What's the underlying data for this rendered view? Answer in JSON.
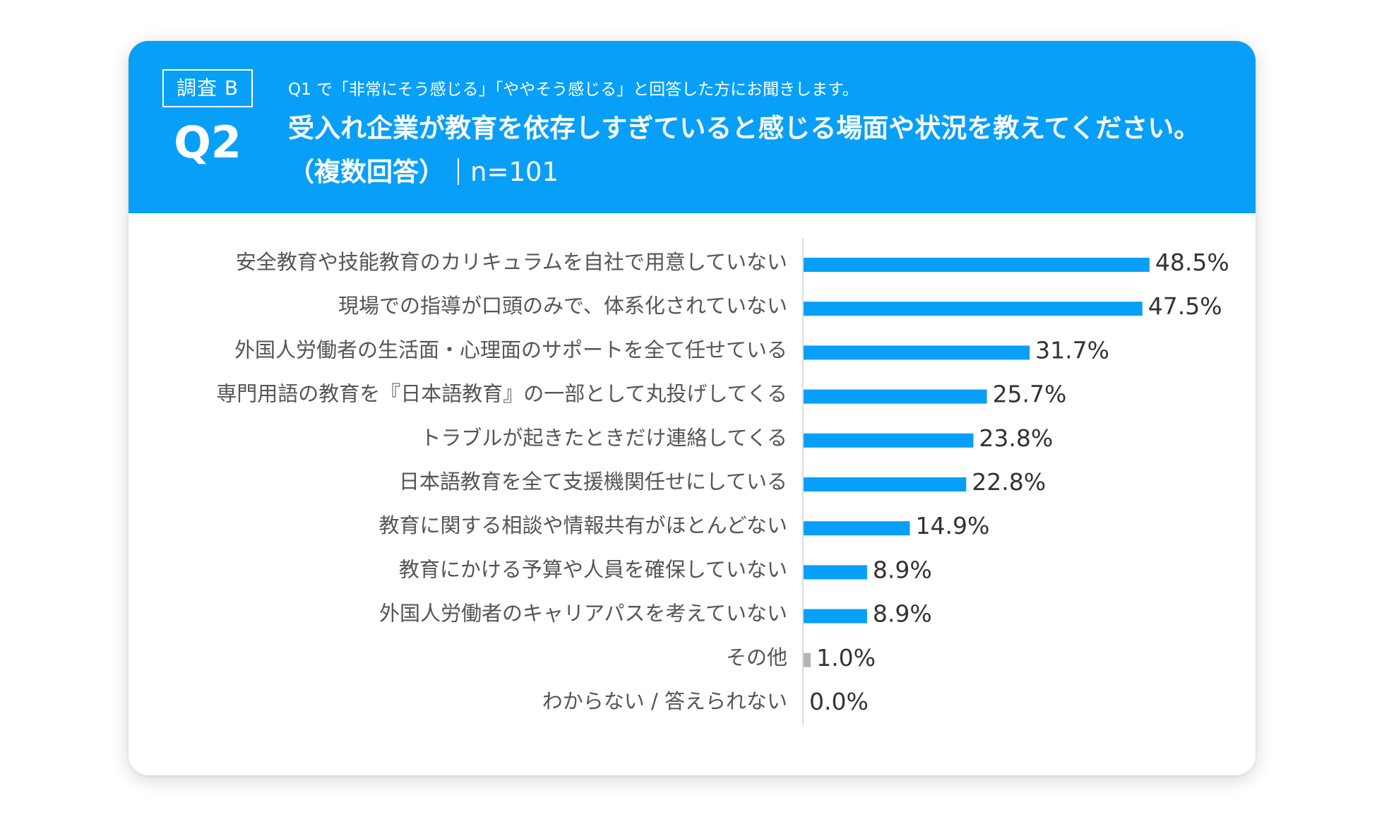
{
  "header": {
    "survey_label": "調査 B",
    "question_number": "Q2",
    "subtitle": "Q1 で「非常にそう感じる」「ややそう感じる」と回答した方にお聞きします。",
    "title": "受入れ企業が教育を依存しすぎていると感じる場面や状況を教えてください。",
    "answer_type": "（複数回答）",
    "sample_size": "n=101"
  },
  "colors": {
    "header_bg": "#089ff8",
    "bar": "#089ff8",
    "bar_other": "#b4b4b4",
    "label_text": "#555555",
    "value_text": "#333333"
  },
  "chart_data": {
    "type": "bar",
    "orientation": "horizontal",
    "categories": [
      "安全教育や技能教育のカリキュラムを自社で用意していない",
      "現場での指導が口頭のみで、体系化されていない",
      "外国人労働者の生活面・心理面のサポートを全て任せている",
      "専門用語の教育を『日本語教育』の一部として丸投げしてくる",
      "トラブルが起きたときだけ連絡してくる",
      "日本語教育を全て支援機関任せにしている",
      "教育に関する相談や情報共有がほとんどない",
      "教育にかける予算や人員を確保していない",
      "外国人労働者のキャリアパスを考えていない",
      "その他",
      "わからない / 答えられない"
    ],
    "values": [
      48.5,
      47.5,
      31.7,
      25.7,
      23.8,
      22.8,
      14.9,
      8.9,
      8.9,
      1.0,
      0.0
    ],
    "value_labels": [
      "48.5%",
      "47.5%",
      "31.7%",
      "25.7%",
      "23.8%",
      "22.8%",
      "14.9%",
      "8.9%",
      "8.9%",
      "1.0%",
      "0.0%"
    ],
    "unit": "%",
    "xlim": [
      0,
      100
    ],
    "grid": false,
    "legend": "none"
  }
}
